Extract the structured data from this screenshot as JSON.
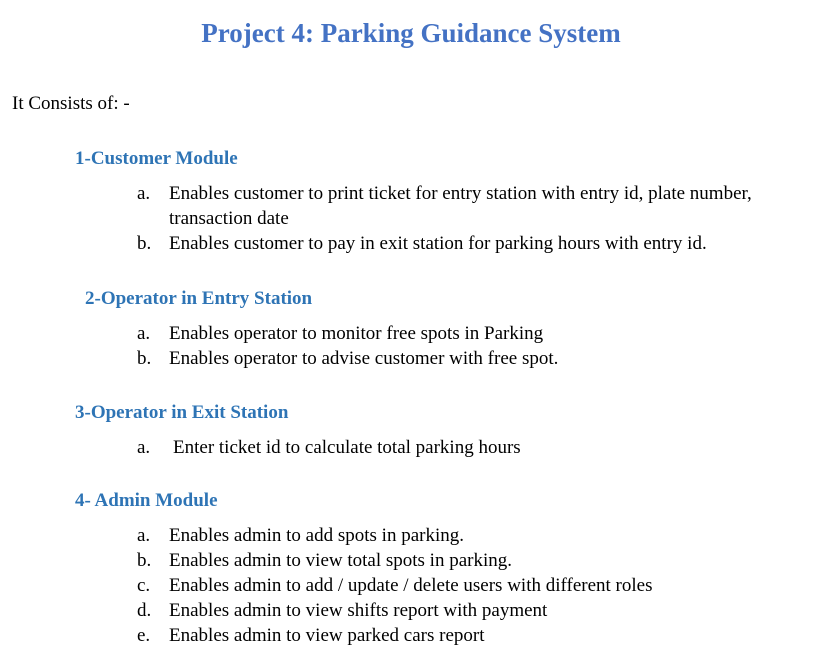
{
  "document": {
    "title": "Project 4: Parking Guidance System",
    "intro": "It Consists of: -",
    "sections": [
      {
        "heading": "1-Customer Module",
        "items": [
          {
            "marker": "a.",
            "text": "Enables customer to print ticket for entry station with entry id, plate number, transaction date"
          },
          {
            "marker": "b.",
            "text": "Enables customer to pay in exit station for parking hours with entry id."
          }
        ]
      },
      {
        "heading": "2-Operator in Entry Station",
        "items": [
          {
            "marker": "a.",
            "text": "Enables operator to monitor free spots in Parking"
          },
          {
            "marker": "b.",
            "text": "Enables operator to advise customer with free spot."
          }
        ]
      },
      {
        "heading": "3-Operator in Exit Station",
        "items": [
          {
            "marker": "a.",
            "text": "Enter ticket id to calculate total parking hours"
          }
        ]
      },
      {
        "heading": "4- Admin Module",
        "items": [
          {
            "marker": "a.",
            "text": "Enables admin to add spots in parking."
          },
          {
            "marker": "b.",
            "text": "Enables admin to view total spots in parking."
          },
          {
            "marker": "c.",
            "text": "Enables admin to add / update / delete users with different roles"
          },
          {
            "marker": "d.",
            "text": "Enables admin to view shifts report with payment"
          },
          {
            "marker": "e.",
            "text": "Enables admin to view parked cars report"
          }
        ]
      }
    ]
  },
  "colors": {
    "title": "#4472c4",
    "heading": "#2e74b5",
    "body_text": "#000000",
    "background": "#ffffff"
  }
}
